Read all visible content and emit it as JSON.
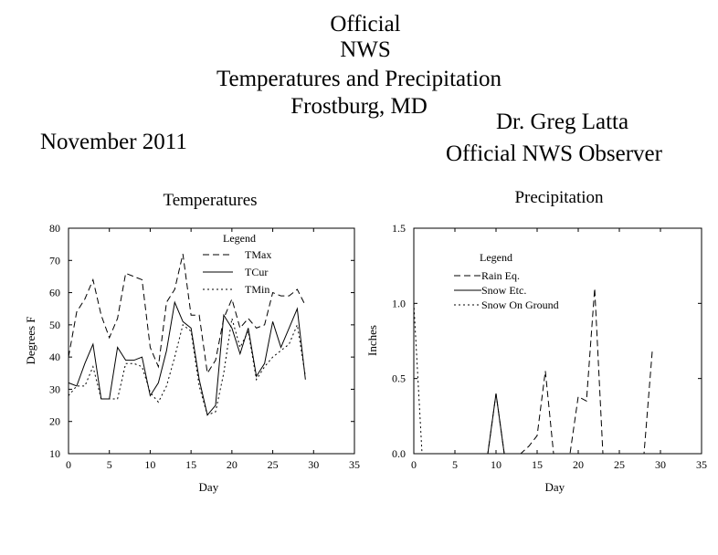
{
  "header": {
    "title_lines": [
      "Official",
      "NWS",
      "Temperatures and Precipitation",
      "Frostburg, MD"
    ],
    "month": "November 2011",
    "observer_name": "Dr. Greg Latta",
    "observer_title": "Official NWS Observer"
  },
  "chart_data": [
    {
      "type": "line",
      "title": "Temperatures",
      "xlabel": "Day",
      "ylabel": "Degrees F",
      "xlim": [
        0,
        35
      ],
      "ylim": [
        10,
        80
      ],
      "xticks": [
        0,
        5,
        10,
        15,
        20,
        25,
        30,
        35
      ],
      "yticks": [
        10,
        20,
        30,
        40,
        50,
        60,
        70,
        80
      ],
      "legend_title": "Legend",
      "legend_position": "top-right",
      "x": [
        0,
        1,
        2,
        3,
        4,
        5,
        6,
        7,
        8,
        9,
        10,
        11,
        12,
        13,
        14,
        15,
        16,
        17,
        18,
        19,
        20,
        21,
        22,
        23,
        24,
        25,
        26,
        27,
        28,
        29
      ],
      "series": [
        {
          "name": "TMax",
          "style": "dashed",
          "values": [
            40,
            54,
            58,
            64,
            53,
            46,
            52,
            66,
            65,
            64,
            43,
            37,
            57,
            61,
            72,
            53,
            53,
            35,
            39,
            52,
            58,
            49,
            52,
            49,
            50,
            60,
            59,
            59,
            61,
            56
          ]
        },
        {
          "name": "TCur",
          "style": "solid",
          "values": [
            32,
            31,
            38,
            44,
            27,
            27,
            43,
            39,
            39,
            40,
            28,
            32,
            42,
            57,
            51,
            49,
            33,
            22,
            25,
            53,
            49,
            41,
            49,
            34,
            38,
            51,
            43,
            49,
            55,
            33
          ]
        },
        {
          "name": "TMin",
          "style": "dotted",
          "values": [
            28,
            31,
            31,
            37,
            27,
            27,
            27,
            38,
            38,
            37,
            29,
            26,
            31,
            40,
            50,
            48,
            31,
            22,
            23,
            35,
            52,
            43,
            48,
            33,
            37,
            40,
            42,
            44,
            50,
            34
          ]
        }
      ]
    },
    {
      "type": "line",
      "title": "Precipitation",
      "xlabel": "Day",
      "ylabel": "Inches",
      "xlim": [
        0,
        35
      ],
      "ylim": [
        0,
        1.5
      ],
      "xticks": [
        0,
        5,
        10,
        15,
        20,
        25,
        30,
        35
      ],
      "yticks": [
        "0.0",
        "0.5",
        "1.0",
        "1.5"
      ],
      "legend_title": "Legend",
      "legend_position": "top-left",
      "series": [
        {
          "name": "Rain Eq.",
          "style": "dashed",
          "x": [
            0,
            1,
            2,
            3,
            4,
            5,
            6,
            7,
            8,
            9,
            10,
            11,
            12,
            13,
            14,
            15,
            16,
            17,
            18,
            19,
            20,
            21,
            22,
            23,
            24,
            25,
            26,
            27,
            28,
            29
          ],
          "values": [
            0,
            0,
            0,
            0,
            0,
            0,
            0,
            0,
            0,
            0,
            0.4,
            0,
            0,
            0,
            0.05,
            0.12,
            0.55,
            0,
            0,
            0,
            0.38,
            0.35,
            1.1,
            0,
            0,
            0,
            0,
            0,
            0,
            0.68
          ]
        },
        {
          "name": "Snow Etc.",
          "style": "solid",
          "x": [
            0,
            1,
            2,
            3,
            4,
            5,
            6,
            7,
            8,
            9,
            10,
            11,
            12,
            13,
            14,
            15,
            16,
            17,
            18,
            19,
            20,
            21,
            22,
            23,
            24,
            25,
            26,
            27,
            28,
            29
          ],
          "values": [
            0,
            0,
            0,
            0,
            0,
            0,
            0,
            0,
            0,
            0,
            0.4,
            0,
            0,
            0,
            0,
            0,
            0,
            0,
            0,
            0,
            0,
            0,
            0,
            0,
            0,
            0,
            0,
            0,
            0,
            0
          ]
        },
        {
          "name": "Snow On Ground",
          "style": "dotted",
          "x": [
            0,
            1,
            2,
            3,
            4,
            5,
            6,
            7,
            8,
            9,
            10,
            11,
            12,
            13,
            14,
            15,
            16,
            17,
            18,
            19,
            20,
            21,
            22,
            23,
            24,
            25,
            26,
            27,
            28,
            29
          ],
          "values": [
            1.0,
            0,
            0,
            0,
            0,
            0,
            0,
            0,
            0,
            0,
            0,
            0,
            0,
            0,
            0,
            0,
            0,
            0,
            0,
            0,
            0,
            0,
            0,
            0,
            0,
            0,
            0,
            0,
            0,
            0
          ]
        }
      ]
    }
  ]
}
